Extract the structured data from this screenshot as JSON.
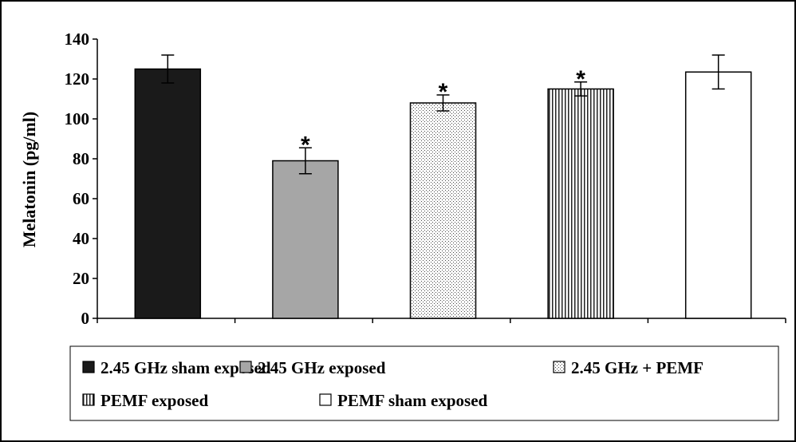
{
  "chart_data": {
    "type": "bar",
    "title": "",
    "xlabel": "",
    "ylabel": "Melatonin (pg/ml)",
    "ylim": [
      0,
      140
    ],
    "yticks": [
      "0",
      "20",
      "40",
      "60",
      "80",
      "100",
      "120",
      "140"
    ],
    "grid": false,
    "legend_position": "bottom",
    "significance_marker": "*",
    "bars": [
      {
        "name": "2.45 GHz sham exposed",
        "value": 125,
        "error": 7,
        "significant": false,
        "fill": "#1a1a1a",
        "pattern": "solid"
      },
      {
        "name": "2.45 GHz exposed",
        "value": 79,
        "error": 6.5,
        "significant": true,
        "fill": "#a6a6a6",
        "pattern": "solid"
      },
      {
        "name": "2.45 GHz + PEMF",
        "value": 108,
        "error": 4,
        "significant": true,
        "fill": "#ffffff",
        "pattern": "dots"
      },
      {
        "name": "PEMF exposed",
        "value": 115,
        "error": 3.5,
        "significant": true,
        "fill": "#ffffff",
        "pattern": "vertical-lines"
      },
      {
        "name": "PEMF sham exposed",
        "value": 123.5,
        "error": 8.5,
        "significant": false,
        "fill": "#ffffff",
        "pattern": "none"
      }
    ],
    "legend": [
      {
        "label": "2.45 GHz sham exposed"
      },
      {
        "label": "2.45 GHz exposed"
      },
      {
        "label": "2.45 GHz + PEMF"
      },
      {
        "label": "PEMF exposed"
      },
      {
        "label": "PEMF sham exposed"
      }
    ]
  }
}
